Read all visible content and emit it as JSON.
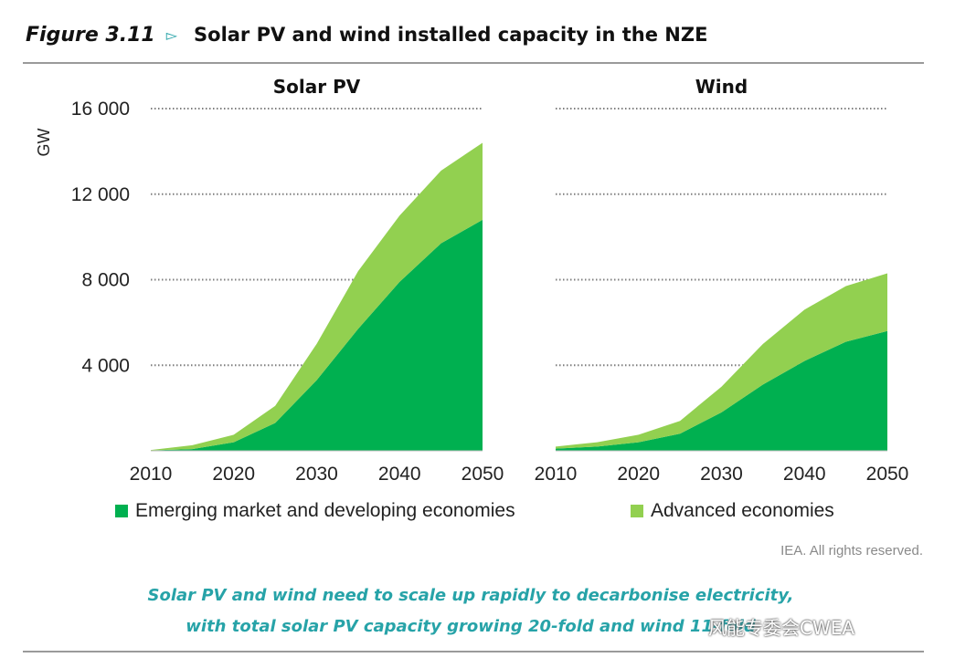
{
  "figure": {
    "label": "Figure 3.11",
    "arrow_icon": "triangle-right-icon",
    "title": "Solar PV and wind installed capacity in the NZE"
  },
  "colors": {
    "emerging": "#00b050",
    "advanced": "#92d050",
    "grid": "#7f7f7f",
    "caption": "#27a3a8"
  },
  "chart_data": [
    {
      "type": "area",
      "stacked": true,
      "title": "Solar PV",
      "ylabel": "GW",
      "xlabel": "",
      "x": [
        2010,
        2015,
        2020,
        2025,
        2030,
        2035,
        2040,
        2045,
        2050
      ],
      "x_ticks": [
        "2010",
        "2020",
        "2030",
        "2040",
        "2050"
      ],
      "y_ticks": [
        "4 000",
        "8 000",
        "12 000",
        "16 000"
      ],
      "ylim": [
        0,
        16000
      ],
      "grid": true,
      "series": [
        {
          "name": "Emerging market and developing economies",
          "values": [
            20,
            80,
            400,
            1300,
            3300,
            5700,
            7900,
            9700,
            10800
          ]
        },
        {
          "name": "Advanced economies",
          "values": [
            20,
            180,
            350,
            800,
            1700,
            2700,
            3100,
            3400,
            3600
          ]
        }
      ]
    },
    {
      "type": "area",
      "stacked": true,
      "title": "Wind",
      "ylabel": "",
      "xlabel": "",
      "x": [
        2010,
        2015,
        2020,
        2025,
        2030,
        2035,
        2040,
        2045,
        2050
      ],
      "x_ticks": [
        "2010",
        "2020",
        "2030",
        "2040",
        "2050"
      ],
      "y_ticks": [
        "4 000",
        "8 000",
        "12 000",
        "16 000"
      ],
      "ylim": [
        0,
        16000
      ],
      "grid": true,
      "series": [
        {
          "name": "Emerging market and developing economies",
          "values": [
            100,
            200,
            400,
            800,
            1800,
            3100,
            4200,
            5100,
            5600
          ]
        },
        {
          "name": "Advanced economies",
          "values": [
            100,
            200,
            350,
            600,
            1200,
            1900,
            2400,
            2600,
            2700
          ]
        }
      ]
    }
  ],
  "legend": {
    "position": "bottom",
    "items": [
      {
        "label": "Emerging market and developing economies",
        "color": "#00b050"
      },
      {
        "label": "Advanced economies",
        "color": "#92d050"
      }
    ]
  },
  "source": "IEA. All rights reserved.",
  "caption": {
    "line1": "Solar PV and wind need to scale up rapidly to decarbonise electricity,",
    "line2": "with total solar PV capacity growing 20-fold and wind 11-fold"
  },
  "watermark": "风能专委会CWEA"
}
